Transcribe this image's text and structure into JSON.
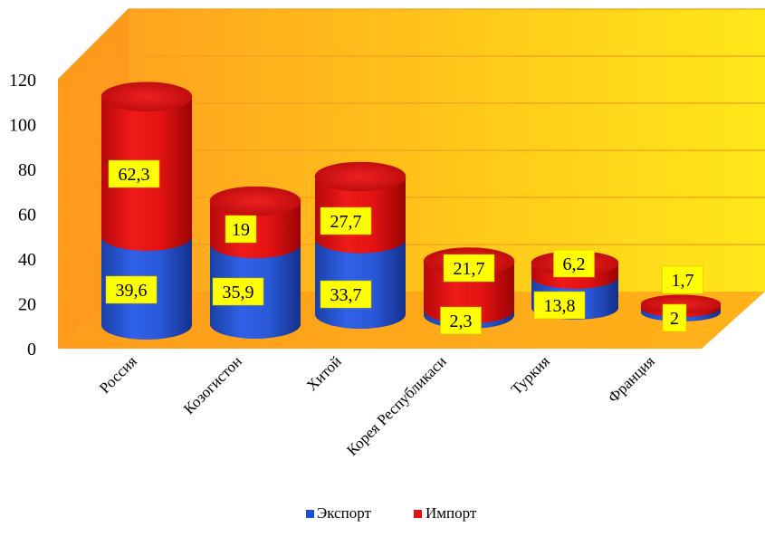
{
  "chart_data": {
    "type": "bar",
    "stacked": true,
    "style": "3d-cylinder",
    "title": "",
    "xlabel": "",
    "ylabel": "",
    "ylim": [
      0,
      120
    ],
    "y_ticks": [
      "0",
      "20",
      "40",
      "60",
      "80",
      "100",
      "120"
    ],
    "grid": true,
    "legend_position": "bottom",
    "categories": [
      "Россия",
      "Козогистон",
      "Хитой",
      "Корея Республикаси",
      "Туркия",
      "Франция"
    ],
    "series": [
      {
        "name": "Экспорт",
        "color": "#1f4fd0",
        "values": [
          39.6,
          35.9,
          33.7,
          2.3,
          13.8,
          2
        ],
        "labels": [
          "39,6",
          "35,9",
          "33,7",
          "2,3",
          "13,8",
          "2"
        ]
      },
      {
        "name": "Импорт",
        "color": "#e81010",
        "values": [
          62.3,
          19,
          27.7,
          21.7,
          6.2,
          1.7
        ],
        "labels": [
          "62,3",
          "19",
          "27,7",
          "21,7",
          "6,2",
          "1,7"
        ]
      }
    ],
    "label_box_color": "#ffff00"
  }
}
